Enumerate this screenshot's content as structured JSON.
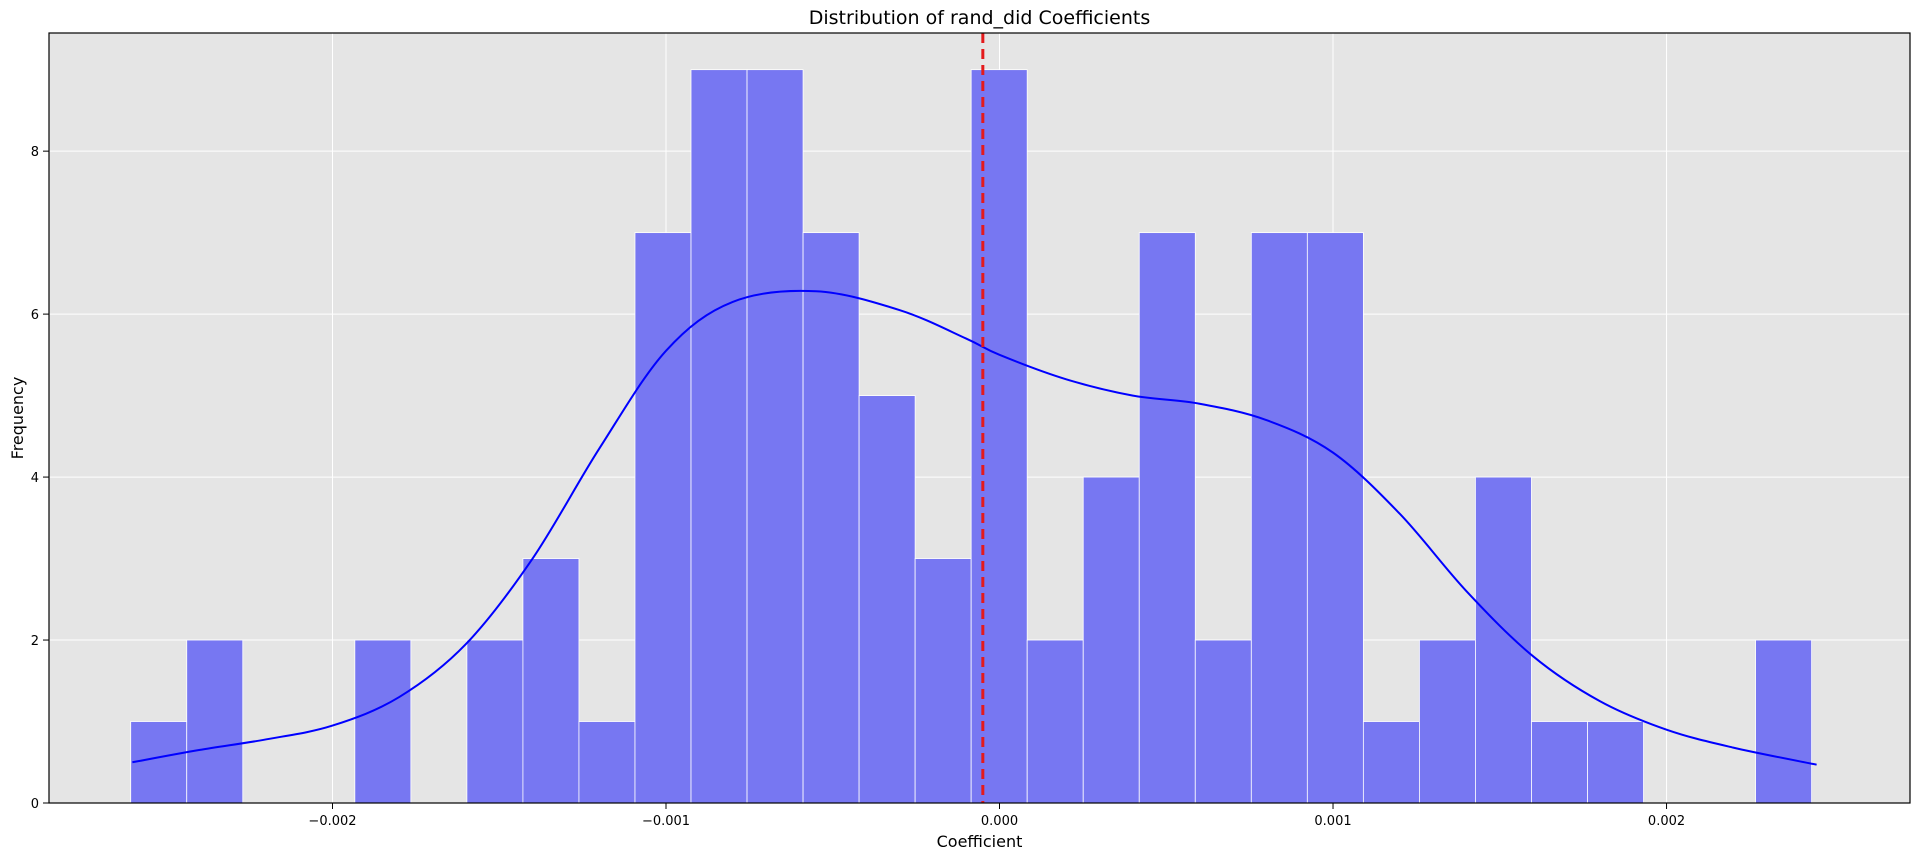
{
  "chart_data": {
    "type": "bar",
    "title": "Distribution of rand_did Coefficients",
    "xlabel": "Coefficient",
    "ylabel": "Frequency",
    "xlim": [
      -0.00285,
      0.00273
    ],
    "ylim": [
      0,
      9.45
    ],
    "grid": true,
    "colors": {
      "background": "#e5e5e5",
      "bar_fill": "#7373f2",
      "bar_edge": "#ffffff",
      "kde_line": "#0000ff",
      "reference_line": "#e41a1c"
    },
    "x_ticks": [
      {
        "value": -0.002,
        "label": "−0.002"
      },
      {
        "value": -0.001,
        "label": "−0.001"
      },
      {
        "value": 0.0,
        "label": "0.000"
      },
      {
        "value": 0.001,
        "label": "0.001"
      },
      {
        "value": 0.002,
        "label": "0.002"
      }
    ],
    "y_ticks": [
      {
        "value": 0,
        "label": "0"
      },
      {
        "value": 2,
        "label": "2"
      },
      {
        "value": 4,
        "label": "4"
      },
      {
        "value": 6,
        "label": "6"
      },
      {
        "value": 8,
        "label": "8"
      }
    ],
    "bins": {
      "start": -0.002605,
      "width": 0.000168,
      "counts": [
        1,
        2,
        0,
        0,
        2,
        0,
        2,
        3,
        1,
        7,
        9,
        9,
        7,
        5,
        3,
        9,
        2,
        4,
        7,
        2,
        7,
        7,
        1,
        2,
        4,
        1,
        1,
        0,
        0,
        2
      ]
    },
    "reference_line": {
      "x": -5e-05,
      "style": "dashed"
    },
    "kde": {
      "x": [
        -0.0026,
        -0.0024,
        -0.0022,
        -0.002,
        -0.0018,
        -0.0016,
        -0.0014,
        -0.0012,
        -0.001,
        -0.0008,
        -0.00055,
        -0.0003,
        -0.0001,
        0.0,
        0.0002,
        0.0004,
        0.0006,
        0.0008,
        0.001,
        0.0012,
        0.0014,
        0.0016,
        0.0018,
        0.002,
        0.0022,
        0.00245
      ],
      "y": [
        0.5,
        0.65,
        0.78,
        0.95,
        1.3,
        1.95,
        3.0,
        4.35,
        5.55,
        6.15,
        6.28,
        6.05,
        5.7,
        5.5,
        5.2,
        5.0,
        4.9,
        4.7,
        4.3,
        3.55,
        2.6,
        1.8,
        1.25,
        0.9,
        0.68,
        0.47
      ]
    }
  }
}
